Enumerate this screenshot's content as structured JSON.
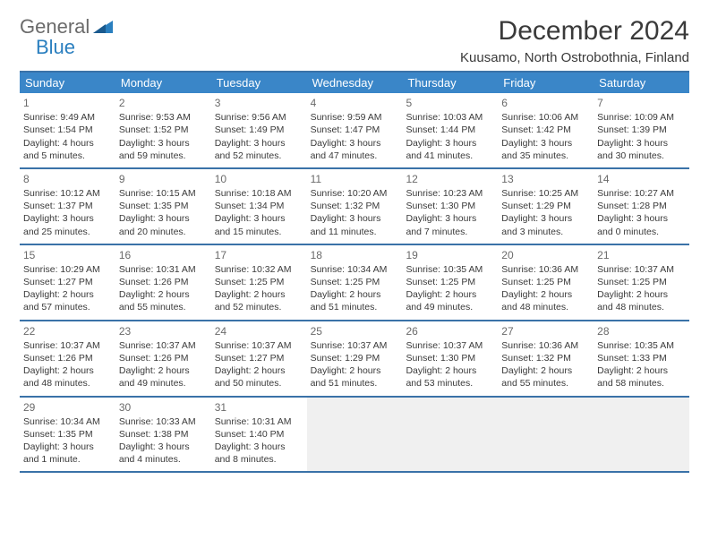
{
  "logo": {
    "line1": "General",
    "line2": "Blue"
  },
  "title": "December 2024",
  "location": "Kuusamo, North Ostrobothnia, Finland",
  "colors": {
    "header_bg": "#3a86c8",
    "border": "#3a72a8",
    "logo_gray": "#6b6b6b",
    "logo_blue": "#2a7fbf",
    "text": "#3a3a3a",
    "empty_bg": "#f0f0f0"
  },
  "weekdays": [
    "Sunday",
    "Monday",
    "Tuesday",
    "Wednesday",
    "Thursday",
    "Friday",
    "Saturday"
  ],
  "weeks": [
    [
      {
        "n": "1",
        "sr": "Sunrise: 9:49 AM",
        "ss": "Sunset: 1:54 PM",
        "dl": "Daylight: 4 hours and 5 minutes."
      },
      {
        "n": "2",
        "sr": "Sunrise: 9:53 AM",
        "ss": "Sunset: 1:52 PM",
        "dl": "Daylight: 3 hours and 59 minutes."
      },
      {
        "n": "3",
        "sr": "Sunrise: 9:56 AM",
        "ss": "Sunset: 1:49 PM",
        "dl": "Daylight: 3 hours and 52 minutes."
      },
      {
        "n": "4",
        "sr": "Sunrise: 9:59 AM",
        "ss": "Sunset: 1:47 PM",
        "dl": "Daylight: 3 hours and 47 minutes."
      },
      {
        "n": "5",
        "sr": "Sunrise: 10:03 AM",
        "ss": "Sunset: 1:44 PM",
        "dl": "Daylight: 3 hours and 41 minutes."
      },
      {
        "n": "6",
        "sr": "Sunrise: 10:06 AM",
        "ss": "Sunset: 1:42 PM",
        "dl": "Daylight: 3 hours and 35 minutes."
      },
      {
        "n": "7",
        "sr": "Sunrise: 10:09 AM",
        "ss": "Sunset: 1:39 PM",
        "dl": "Daylight: 3 hours and 30 minutes."
      }
    ],
    [
      {
        "n": "8",
        "sr": "Sunrise: 10:12 AM",
        "ss": "Sunset: 1:37 PM",
        "dl": "Daylight: 3 hours and 25 minutes."
      },
      {
        "n": "9",
        "sr": "Sunrise: 10:15 AM",
        "ss": "Sunset: 1:35 PM",
        "dl": "Daylight: 3 hours and 20 minutes."
      },
      {
        "n": "10",
        "sr": "Sunrise: 10:18 AM",
        "ss": "Sunset: 1:34 PM",
        "dl": "Daylight: 3 hours and 15 minutes."
      },
      {
        "n": "11",
        "sr": "Sunrise: 10:20 AM",
        "ss": "Sunset: 1:32 PM",
        "dl": "Daylight: 3 hours and 11 minutes."
      },
      {
        "n": "12",
        "sr": "Sunrise: 10:23 AM",
        "ss": "Sunset: 1:30 PM",
        "dl": "Daylight: 3 hours and 7 minutes."
      },
      {
        "n": "13",
        "sr": "Sunrise: 10:25 AM",
        "ss": "Sunset: 1:29 PM",
        "dl": "Daylight: 3 hours and 3 minutes."
      },
      {
        "n": "14",
        "sr": "Sunrise: 10:27 AM",
        "ss": "Sunset: 1:28 PM",
        "dl": "Daylight: 3 hours and 0 minutes."
      }
    ],
    [
      {
        "n": "15",
        "sr": "Sunrise: 10:29 AM",
        "ss": "Sunset: 1:27 PM",
        "dl": "Daylight: 2 hours and 57 minutes."
      },
      {
        "n": "16",
        "sr": "Sunrise: 10:31 AM",
        "ss": "Sunset: 1:26 PM",
        "dl": "Daylight: 2 hours and 55 minutes."
      },
      {
        "n": "17",
        "sr": "Sunrise: 10:32 AM",
        "ss": "Sunset: 1:25 PM",
        "dl": "Daylight: 2 hours and 52 minutes."
      },
      {
        "n": "18",
        "sr": "Sunrise: 10:34 AM",
        "ss": "Sunset: 1:25 PM",
        "dl": "Daylight: 2 hours and 51 minutes."
      },
      {
        "n": "19",
        "sr": "Sunrise: 10:35 AM",
        "ss": "Sunset: 1:25 PM",
        "dl": "Daylight: 2 hours and 49 minutes."
      },
      {
        "n": "20",
        "sr": "Sunrise: 10:36 AM",
        "ss": "Sunset: 1:25 PM",
        "dl": "Daylight: 2 hours and 48 minutes."
      },
      {
        "n": "21",
        "sr": "Sunrise: 10:37 AM",
        "ss": "Sunset: 1:25 PM",
        "dl": "Daylight: 2 hours and 48 minutes."
      }
    ],
    [
      {
        "n": "22",
        "sr": "Sunrise: 10:37 AM",
        "ss": "Sunset: 1:26 PM",
        "dl": "Daylight: 2 hours and 48 minutes."
      },
      {
        "n": "23",
        "sr": "Sunrise: 10:37 AM",
        "ss": "Sunset: 1:26 PM",
        "dl": "Daylight: 2 hours and 49 minutes."
      },
      {
        "n": "24",
        "sr": "Sunrise: 10:37 AM",
        "ss": "Sunset: 1:27 PM",
        "dl": "Daylight: 2 hours and 50 minutes."
      },
      {
        "n": "25",
        "sr": "Sunrise: 10:37 AM",
        "ss": "Sunset: 1:29 PM",
        "dl": "Daylight: 2 hours and 51 minutes."
      },
      {
        "n": "26",
        "sr": "Sunrise: 10:37 AM",
        "ss": "Sunset: 1:30 PM",
        "dl": "Daylight: 2 hours and 53 minutes."
      },
      {
        "n": "27",
        "sr": "Sunrise: 10:36 AM",
        "ss": "Sunset: 1:32 PM",
        "dl": "Daylight: 2 hours and 55 minutes."
      },
      {
        "n": "28",
        "sr": "Sunrise: 10:35 AM",
        "ss": "Sunset: 1:33 PM",
        "dl": "Daylight: 2 hours and 58 minutes."
      }
    ],
    [
      {
        "n": "29",
        "sr": "Sunrise: 10:34 AM",
        "ss": "Sunset: 1:35 PM",
        "dl": "Daylight: 3 hours and 1 minute."
      },
      {
        "n": "30",
        "sr": "Sunrise: 10:33 AM",
        "ss": "Sunset: 1:38 PM",
        "dl": "Daylight: 3 hours and 4 minutes."
      },
      {
        "n": "31",
        "sr": "Sunrise: 10:31 AM",
        "ss": "Sunset: 1:40 PM",
        "dl": "Daylight: 3 hours and 8 minutes."
      },
      null,
      null,
      null,
      null
    ]
  ]
}
